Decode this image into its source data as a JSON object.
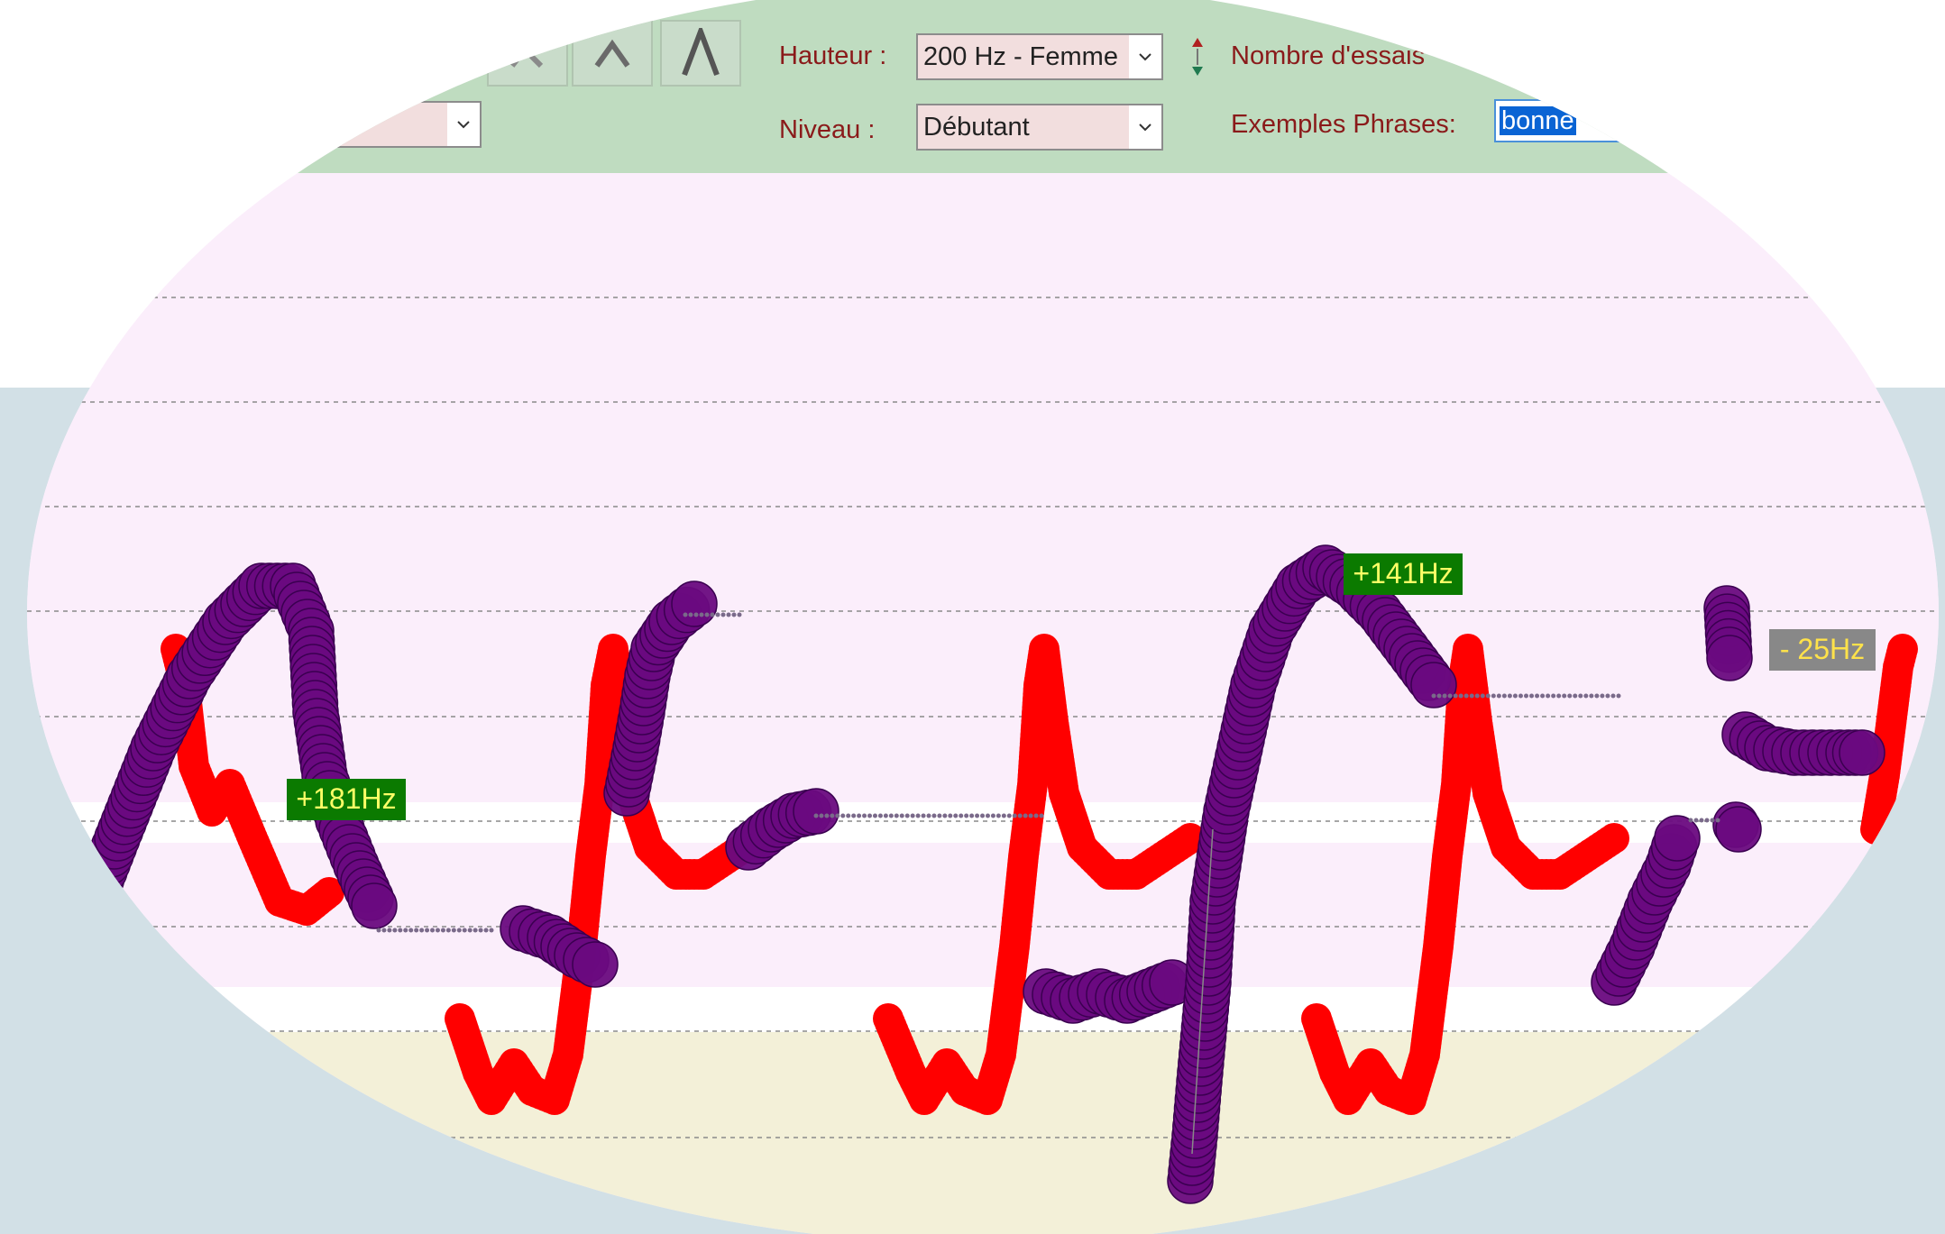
{
  "toolbar": {
    "hauteur_label": "Hauteur :",
    "hauteur_value": "200 Hz - Femme",
    "niveau_label": "Niveau :",
    "niveau_value": "Débutant",
    "essais_label": "Nombre d'essais",
    "phrases_label": "Exemples Phrases:",
    "phrases_value": "bonne",
    "contour_buttons": [
      "partial-caret-icon",
      "small-caret-icon",
      "large-caret-icon"
    ]
  },
  "annotations": [
    "+181Hz",
    "+141Hz",
    "- 25Hz"
  ],
  "colors": {
    "target_curve": "#ff0000",
    "user_curve": "#6a0a80",
    "delta_positive_bg": "#0b7a00",
    "delta_positive_text": "#ffff66",
    "delta_negative_bg": "#888888",
    "delta_negative_text": "#ffe24a",
    "toolbar_bg": "#bfdcc0",
    "plot_bg": "#fbeefb"
  }
}
